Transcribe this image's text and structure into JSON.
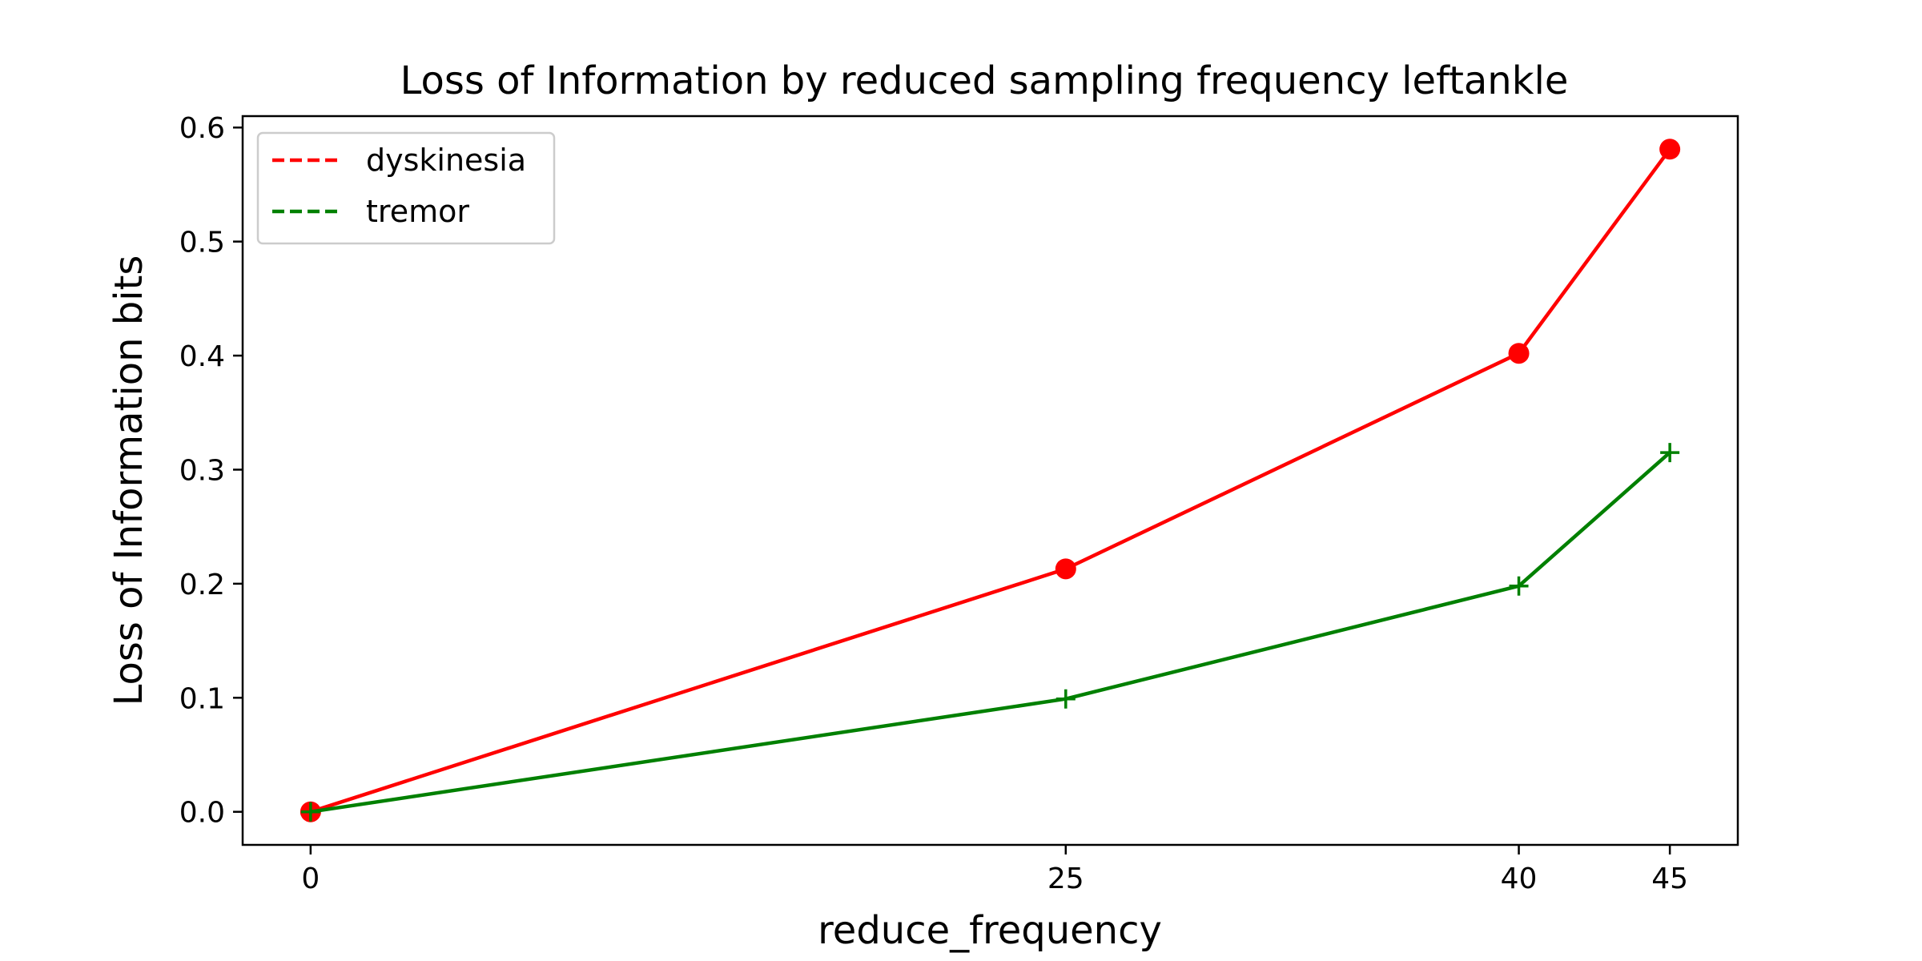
{
  "chart_data": {
    "type": "line",
    "title": "Loss of Information by reduced sampling frequency leftankle",
    "xlabel": "reduce_frequency",
    "ylabel": "Loss of Information bits",
    "x": [
      0,
      25,
      40,
      45
    ],
    "xticks": [
      "0",
      "25",
      "40",
      "45"
    ],
    "yticks": [
      "0.0",
      "0.1",
      "0.2",
      "0.3",
      "0.4",
      "0.5",
      "0.6"
    ],
    "xlim": [
      -2.25,
      47.25
    ],
    "ylim": [
      -0.029,
      0.61
    ],
    "grid": false,
    "legend_position": "top-left",
    "series": [
      {
        "name": "dyskinesia",
        "color": "#ff0000",
        "marker": "circle",
        "legend_linestyle": "dashed",
        "values": [
          0.0,
          0.213,
          0.402,
          0.581
        ]
      },
      {
        "name": "tremor",
        "color": "#008000",
        "marker": "plus",
        "legend_linestyle": "dashed",
        "values": [
          0.0,
          0.099,
          0.198,
          0.315
        ]
      }
    ]
  }
}
